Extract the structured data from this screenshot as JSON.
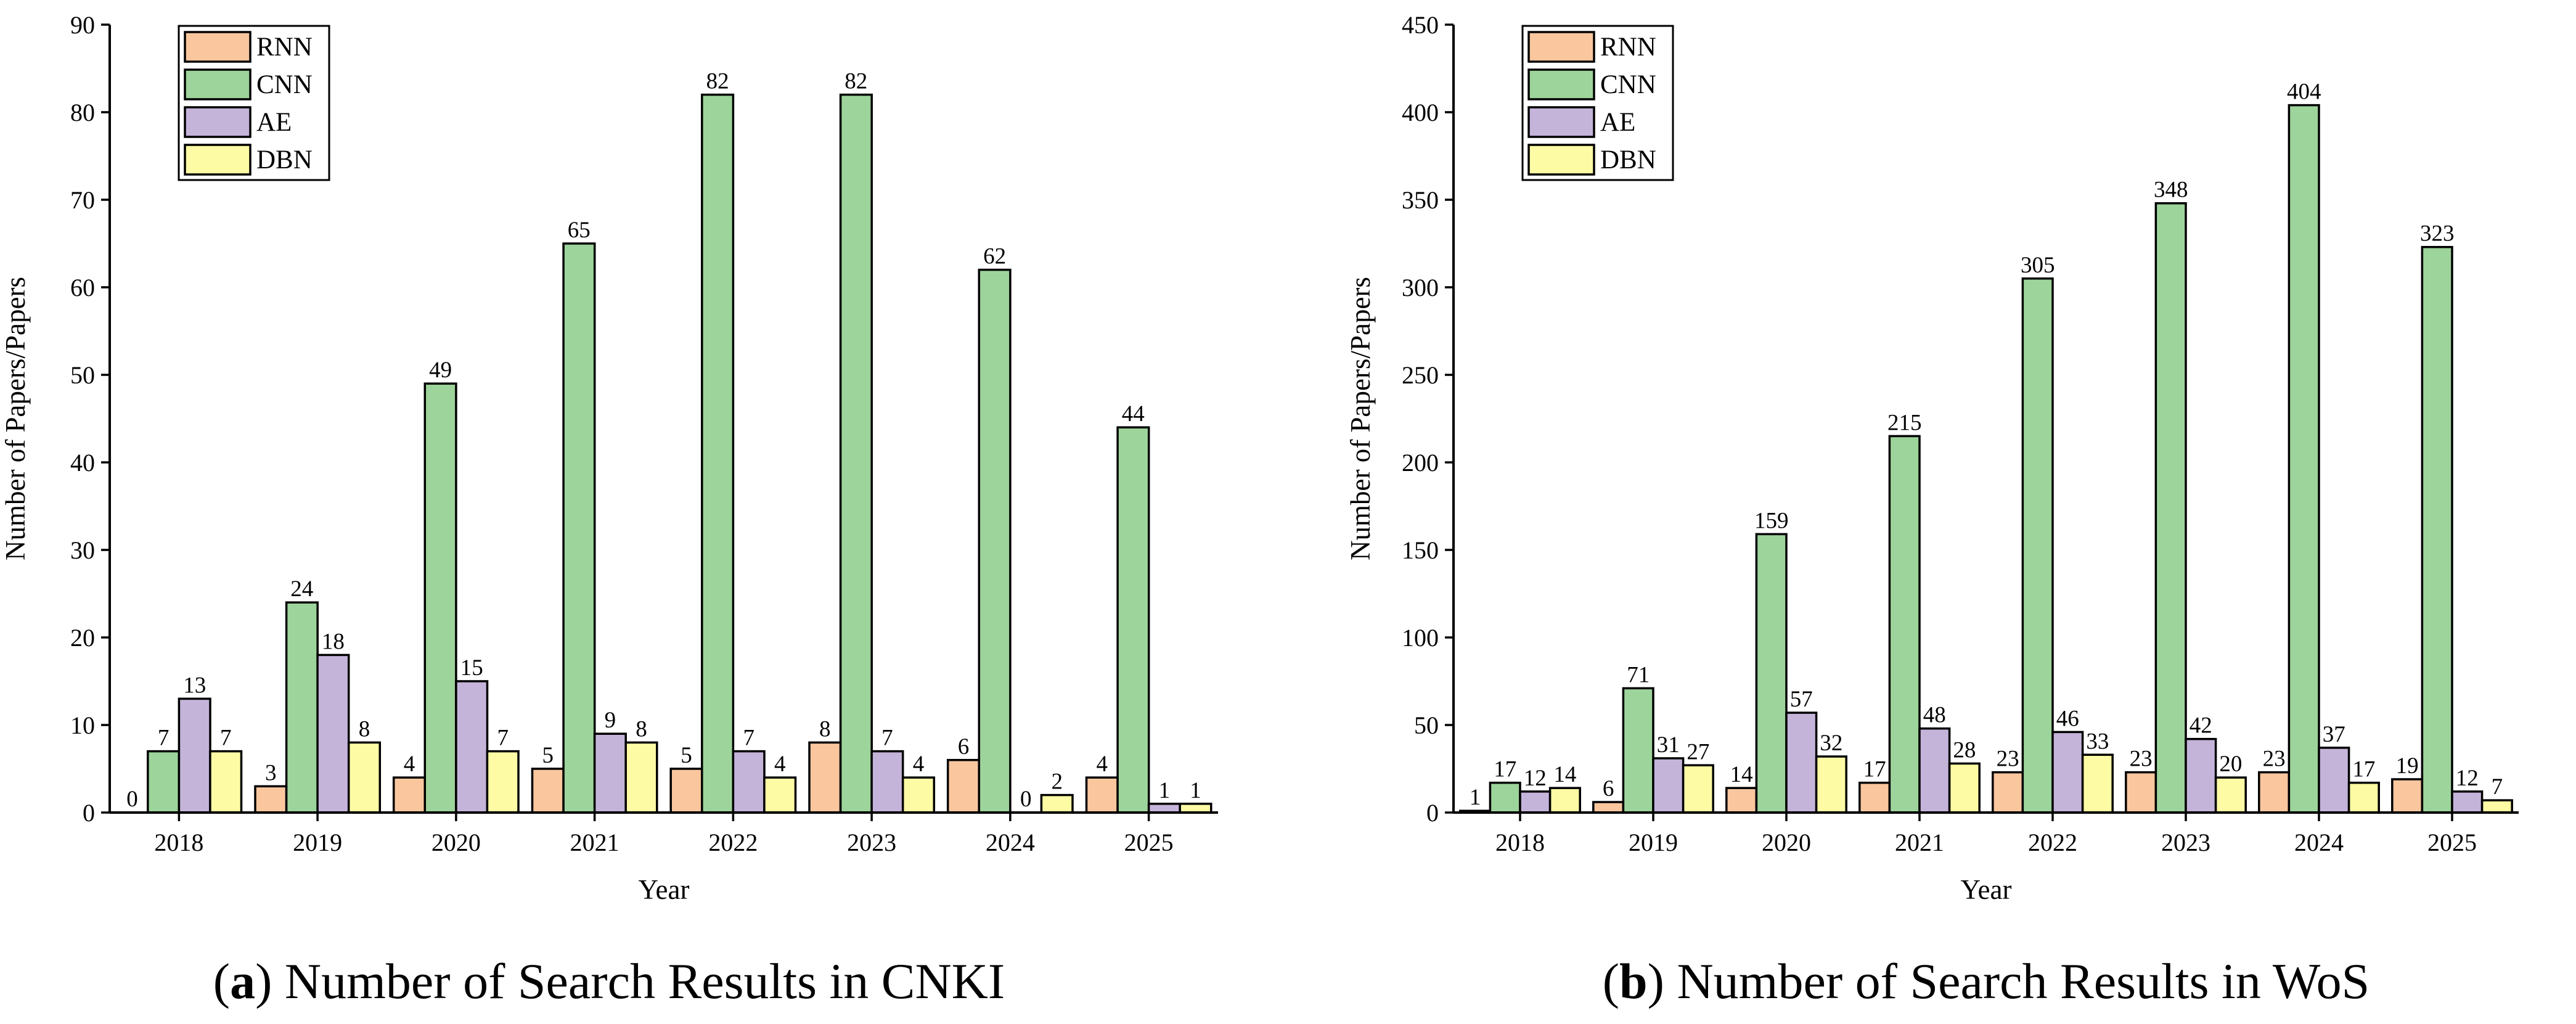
{
  "colors": {
    "RNN": "#F9C69E",
    "CNN": "#9DD49B",
    "AE": "#C4B4DA",
    "DBN": "#FDFBA4"
  },
  "chart_data": [
    {
      "type": "bar",
      "caption_letter": "a",
      "caption_text": " Number of Search Results in CNKI",
      "caption_open": "(",
      "caption_close": ")",
      "xlabel": "Year",
      "ylabel": "Number of Papers/Papers",
      "ylim": [
        0,
        90
      ],
      "yticks": [
        0,
        10,
        20,
        30,
        40,
        50,
        60,
        70,
        80,
        90
      ],
      "categories": [
        "2018",
        "2019",
        "2020",
        "2021",
        "2022",
        "2023",
        "2024",
        "2025"
      ],
      "legend_position": "top-left",
      "series": [
        {
          "name": "RNN",
          "values": [
            0,
            3,
            4,
            5,
            5,
            8,
            6,
            4
          ]
        },
        {
          "name": "CNN",
          "values": [
            7,
            24,
            49,
            65,
            82,
            82,
            62,
            44
          ]
        },
        {
          "name": "AE",
          "values": [
            13,
            18,
            15,
            9,
            7,
            7,
            0,
            1
          ]
        },
        {
          "name": "DBN",
          "values": [
            7,
            8,
            7,
            8,
            4,
            4,
            2,
            1
          ]
        }
      ]
    },
    {
      "type": "bar",
      "caption_letter": "b",
      "caption_text": " Number of Search Results in WoS",
      "caption_open": "(",
      "caption_close": ")",
      "xlabel": "Year",
      "ylabel": "Number of Papers/Papers",
      "ylim": [
        0,
        450
      ],
      "yticks": [
        0,
        50,
        100,
        150,
        200,
        250,
        300,
        350,
        400,
        450
      ],
      "categories": [
        "2018",
        "2019",
        "2020",
        "2021",
        "2022",
        "2023",
        "2024",
        "2025"
      ],
      "legend_position": "top-left",
      "series": [
        {
          "name": "RNN",
          "values": [
            1,
            6,
            14,
            17,
            23,
            23,
            23,
            19
          ]
        },
        {
          "name": "CNN",
          "values": [
            17,
            71,
            159,
            215,
            305,
            348,
            404,
            323
          ]
        },
        {
          "name": "AE",
          "values": [
            12,
            31,
            57,
            48,
            46,
            42,
            37,
            12
          ]
        },
        {
          "name": "DBN",
          "values": [
            14,
            27,
            32,
            28,
            33,
            20,
            17,
            7
          ]
        }
      ]
    }
  ]
}
